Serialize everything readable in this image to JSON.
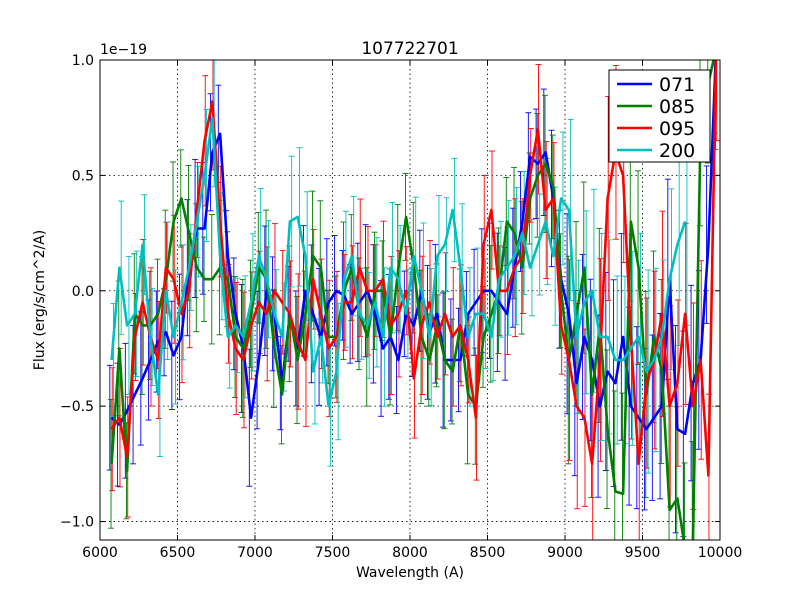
{
  "chart_data": {
    "type": "line",
    "title": "107722701",
    "xlabel": "Wavelength (A)",
    "ylabel": "Flux (erg/s/cm^2/A)",
    "offset_label": "1e−19",
    "xlim": [
      6000,
      10000
    ],
    "ylim": [
      -1.08,
      1.0
    ],
    "xticks": [
      6000,
      6500,
      7000,
      7500,
      8000,
      8500,
      9000,
      9500,
      10000
    ],
    "xtick_labels": [
      "6000",
      "6500",
      "7000",
      "7500",
      "8000",
      "8500",
      "9000",
      "9500",
      "10000"
    ],
    "yticks": [
      -1.0,
      -0.5,
      0.0,
      0.5,
      1.0
    ],
    "ytick_labels": [
      "−1.0",
      "−0.5",
      "0.0",
      "0.5",
      "1.0"
    ],
    "grid": true,
    "legend_position": "top-right",
    "series": [
      {
        "name": "071",
        "color": "#0000ff",
        "x": [
          6075,
          6125,
          6175,
          6225,
          6275,
          6325,
          6375,
          6425,
          6475,
          6525,
          6575,
          6625,
          6675,
          6725,
          6775,
          6825,
          6875,
          6925,
          6975,
          7025,
          7075,
          7125,
          7175,
          7225,
          7275,
          7325,
          7375,
          7425,
          7475,
          7525,
          7575,
          7625,
          7675,
          7725,
          7775,
          7825,
          7875,
          7925,
          7975,
          8025,
          8075,
          8125,
          8175,
          8225,
          8275,
          8325,
          8375,
          8425,
          8475,
          8525,
          8575,
          8625,
          8675,
          8725,
          8775,
          8825,
          8875,
          8925,
          8975,
          9025,
          9075,
          9125,
          9175,
          9225,
          9275,
          9325,
          9375,
          9425,
          9475,
          9525,
          9575,
          9625,
          9675,
          9725,
          9775,
          9825,
          9875,
          9925,
          9975
        ],
        "y": [
          -0.55,
          -0.58,
          -0.52,
          -0.45,
          -0.38,
          -0.3,
          -0.22,
          -0.18,
          -0.28,
          -0.2,
          0.1,
          0.27,
          0.27,
          0.6,
          0.68,
          0.15,
          -0.1,
          -0.25,
          -0.55,
          -0.3,
          0.0,
          -0.1,
          -0.4,
          -0.1,
          -0.25,
          0.0,
          -0.1,
          -0.2,
          -0.05,
          0.0,
          -0.02,
          -0.1,
          -0.05,
          0.0,
          -0.1,
          -0.25,
          -0.2,
          -0.3,
          -0.1,
          -0.15,
          0.0,
          -0.18,
          -0.1,
          -0.3,
          -0.3,
          -0.3,
          -0.1,
          -0.05,
          0.0,
          0.0,
          -0.05,
          -0.1,
          0.1,
          0.3,
          0.58,
          0.55,
          0.6,
          0.4,
          0.05,
          -0.1,
          -0.4,
          -0.2,
          -0.3,
          -0.5,
          -0.35,
          -0.4,
          -0.2,
          -0.5,
          -0.55,
          -0.6,
          -0.55,
          -0.5,
          0.05,
          -0.6,
          -0.62,
          -0.4,
          -0.3,
          0.2,
          1.05
        ]
      },
      {
        "name": "085",
        "color": "#007f00",
        "x": [
          6075,
          6125,
          6175,
          6225,
          6275,
          6325,
          6375,
          6425,
          6475,
          6525,
          6575,
          6625,
          6675,
          6725,
          6775,
          6825,
          6875,
          6925,
          6975,
          7025,
          7075,
          7125,
          7175,
          7225,
          7275,
          7325,
          7375,
          7425,
          7475,
          7525,
          7575,
          7625,
          7675,
          7725,
          7775,
          7825,
          7875,
          7925,
          7975,
          8025,
          8075,
          8125,
          8175,
          8225,
          8275,
          8325,
          8375,
          8425,
          8475,
          8525,
          8575,
          8625,
          8675,
          8725,
          8775,
          8825,
          8875,
          8925,
          8975,
          9025,
          9075,
          9125,
          9175,
          9225,
          9275,
          9325,
          9375,
          9425,
          9475,
          9525,
          9575,
          9625,
          9675,
          9725,
          9775,
          9825,
          9875,
          9925,
          9975
        ],
        "y": [
          -0.75,
          -0.25,
          -0.78,
          -0.1,
          -0.15,
          -0.15,
          -0.1,
          0.05,
          0.3,
          0.4,
          0.25,
          0.1,
          0.05,
          0.05,
          0.1,
          0.05,
          -0.2,
          -0.25,
          -0.1,
          0.1,
          0.05,
          -0.25,
          -0.45,
          -0.1,
          -0.3,
          -0.1,
          0.15,
          0.1,
          -0.2,
          -0.2,
          0.0,
          0.1,
          -0.1,
          -0.2,
          0.0,
          0.0,
          -0.2,
          0.1,
          0.32,
          0.1,
          -0.2,
          -0.3,
          -0.15,
          -0.3,
          -0.35,
          -0.15,
          -0.45,
          -0.5,
          -0.2,
          -0.1,
          0.0,
          0.3,
          0.25,
          0.1,
          0.4,
          0.5,
          0.55,
          0.45,
          0.0,
          -0.3,
          -0.1,
          0.1,
          -0.45,
          -0.15,
          -0.6,
          -0.87,
          -0.88,
          0.3,
          0.1,
          -0.45,
          -0.2,
          -0.35,
          -0.95,
          -0.9,
          -1.12,
          -1.1,
          0.7,
          0.9,
          1.05
        ]
      },
      {
        "name": "095",
        "color": "#ff0000",
        "x": [
          6075,
          6125,
          6175,
          6225,
          6275,
          6325,
          6375,
          6425,
          6475,
          6525,
          6575,
          6625,
          6675,
          6725,
          6775,
          6825,
          6875,
          6925,
          6975,
          7025,
          7075,
          7125,
          7175,
          7225,
          7275,
          7325,
          7375,
          7425,
          7475,
          7525,
          7575,
          7625,
          7675,
          7725,
          7775,
          7825,
          7875,
          7925,
          7975,
          8025,
          8075,
          8125,
          8175,
          8225,
          8275,
          8325,
          8375,
          8425,
          8475,
          8525,
          8575,
          8625,
          8675,
          8725,
          8775,
          8825,
          8875,
          8925,
          8975,
          9025,
          9075,
          9125,
          9175,
          9225,
          9275,
          9325,
          9375,
          9425,
          9475,
          9525,
          9575,
          9625,
          9675,
          9725,
          9775,
          9825,
          9875,
          9925,
          9975
        ],
        "y": [
          -0.6,
          -0.55,
          -0.72,
          -0.2,
          -0.05,
          -0.2,
          -0.3,
          0.1,
          0.05,
          -0.1,
          0.0,
          0.35,
          0.65,
          0.82,
          0.3,
          -0.1,
          -0.25,
          -0.3,
          -0.15,
          -0.05,
          -0.1,
          0.0,
          -0.05,
          -0.1,
          -0.22,
          -0.3,
          0.05,
          -0.1,
          -0.25,
          -0.2,
          -0.05,
          -0.05,
          0.1,
          0.0,
          0.0,
          0.05,
          -0.15,
          -0.1,
          0.0,
          -0.38,
          -0.15,
          -0.05,
          -0.2,
          -0.1,
          -0.2,
          -0.15,
          -0.3,
          -0.55,
          0.2,
          0.35,
          0.0,
          0.0,
          0.1,
          0.15,
          0.5,
          0.7,
          0.35,
          0.4,
          -0.15,
          -0.3,
          -0.5,
          -0.55,
          -0.75,
          -0.3,
          0.4,
          0.6,
          0.5,
          -0.2,
          -0.75,
          -0.4,
          -0.3,
          -0.1,
          -0.5,
          -0.4,
          -0.1,
          -0.5,
          -0.3,
          -0.8,
          1.05
        ]
      },
      {
        "name": "200",
        "color": "#00bfbf",
        "x": [
          6075,
          6125,
          6175,
          6225,
          6275,
          6325,
          6375,
          6425,
          6475,
          6525,
          6575,
          6625,
          6675,
          6725,
          6775,
          6825,
          6875,
          6925,
          6975,
          7025,
          7075,
          7125,
          7175,
          7225,
          7275,
          7325,
          7375,
          7425,
          7475,
          7525,
          7575,
          7625,
          7675,
          7725,
          7775,
          7825,
          7875,
          7925,
          7975,
          8025,
          8075,
          8125,
          8175,
          8225,
          8275,
          8325,
          8375,
          8425,
          8475,
          8525,
          8575,
          8625,
          8675,
          8725,
          8775,
          8825,
          8875,
          8925,
          8975,
          9025,
          9075,
          9125,
          9175,
          9225,
          9275,
          9325,
          9375,
          9425,
          9475,
          9525,
          9575,
          9625,
          9675,
          9725,
          9775
        ],
        "y": [
          -0.3,
          0.1,
          -0.15,
          -0.1,
          0.2,
          -0.2,
          -0.45,
          0.0,
          -0.2,
          -0.05,
          0.1,
          0.3,
          0.5,
          0.75,
          0.15,
          -0.2,
          -0.15,
          -0.2,
          -0.05,
          0.15,
          0.05,
          -0.1,
          -0.2,
          0.3,
          0.32,
          0.15,
          -0.35,
          -0.2,
          -0.5,
          -0.35,
          0.05,
          0.15,
          -0.1,
          -0.15,
          -0.05,
          -0.2,
          0.1,
          0.05,
          -0.1,
          0.15,
          0.0,
          -0.2,
          0.15,
          0.2,
          0.35,
          0.1,
          -0.2,
          -0.1,
          -0.1,
          -0.2,
          0.05,
          0.1,
          0.15,
          0.25,
          0.1,
          0.2,
          0.3,
          0.15,
          0.4,
          0.35,
          -0.2,
          -0.05,
          0.0,
          -0.2,
          -0.2,
          -0.3,
          -0.3,
          -0.25,
          -0.2,
          -0.35,
          -0.3,
          -0.2,
          0.05,
          0.2,
          0.3
        ]
      }
    ]
  }
}
